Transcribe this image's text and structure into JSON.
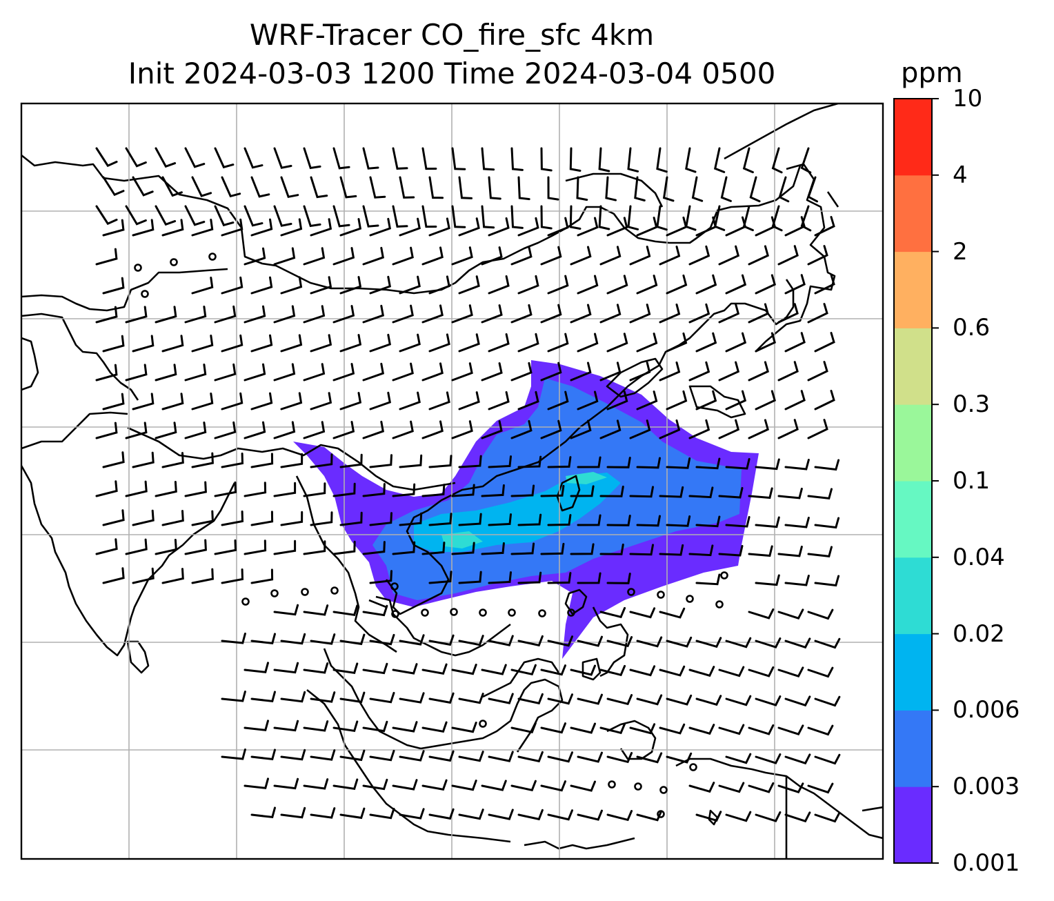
{
  "title_line1": "WRF-Tracer CO_fire_sfc 4km",
  "title_line2": "Init 2024-03-03 1200 Time 2024-03-04 0500",
  "colorbar": {
    "unit": "ppm",
    "levels": [
      "0.001",
      "0.003",
      "0.006",
      "0.02",
      "0.04",
      "0.1",
      "0.3",
      "0.6",
      "2",
      "4",
      "10"
    ],
    "colors": [
      "#6a2cff",
      "#3478f6",
      "#00b4f0",
      "#2edcd4",
      "#66f8c2",
      "#9af79a",
      "#d0e08a",
      "#ffb060",
      "#ff7040",
      "#ff2a18"
    ]
  },
  "map": {
    "gridlines": true,
    "plume_colors": [
      "#6a2cff",
      "#3478f6",
      "#00b4f0"
    ]
  }
}
